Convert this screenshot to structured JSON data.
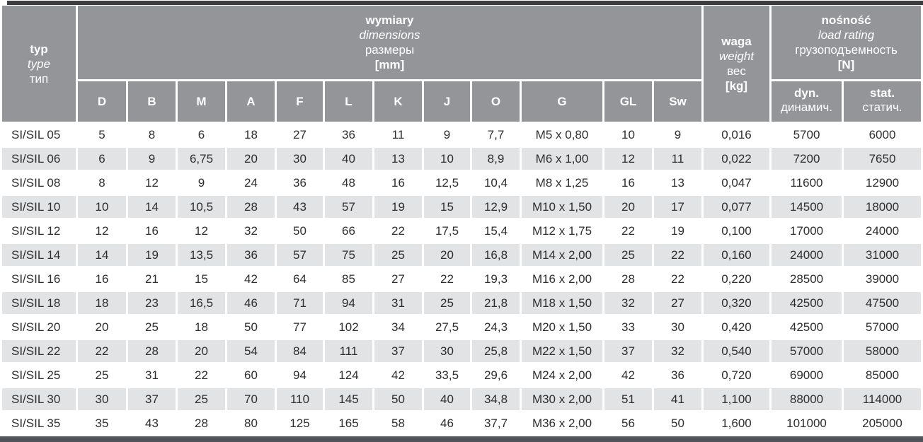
{
  "colors": {
    "header_bg": "#939598",
    "row_alt_bg": "#e2e3e5",
    "header_text": "#ffffff",
    "body_text": "#2d2e30",
    "top_bar": "#3e3e41",
    "bottom_bar": "#525358"
  },
  "table": {
    "header": {
      "type": {
        "pl": "typ",
        "en": "type",
        "ru": "тип"
      },
      "dimensions": {
        "pl": "wymiary",
        "en": "dimensions",
        "ru": "размеры",
        "unit": "[mm]"
      },
      "weight": {
        "pl": "waga",
        "en": "weight",
        "ru": "вес",
        "unit": "[kg]"
      },
      "load_rating": {
        "pl": "nośność",
        "en": "load rating",
        "ru": "грузоподъемность",
        "unit": "[N]"
      },
      "dim_columns": [
        "D",
        "B",
        "M",
        "A",
        "F",
        "L",
        "K",
        "J",
        "O",
        "G",
        "GL",
        "Sw"
      ],
      "dyn": {
        "en": "dyn.",
        "ru": "динамич."
      },
      "stat": {
        "en": "stat.",
        "ru": "статич."
      }
    },
    "rows": [
      {
        "type": "SI/SIL 05",
        "dims": [
          "5",
          "8",
          "6",
          "18",
          "27",
          "36",
          "11",
          "9",
          "7,7",
          "M5 x 0,80",
          "10",
          "9"
        ],
        "weight": "0,016",
        "dyn": "5700",
        "stat": "6000"
      },
      {
        "type": "SI/SIL 06",
        "dims": [
          "6",
          "9",
          "6,75",
          "20",
          "30",
          "40",
          "13",
          "10",
          "8,9",
          "M6 x 1,00",
          "12",
          "11"
        ],
        "weight": "0,022",
        "dyn": "7200",
        "stat": "7650"
      },
      {
        "type": "SI/SIL 08",
        "dims": [
          "8",
          "12",
          "9",
          "24",
          "36",
          "48",
          "16",
          "12,5",
          "10,4",
          "M8 x 1,25",
          "16",
          "13"
        ],
        "weight": "0,047",
        "dyn": "11600",
        "stat": "12900"
      },
      {
        "type": "SI/SIL 10",
        "dims": [
          "10",
          "14",
          "10,5",
          "28",
          "43",
          "57",
          "19",
          "15",
          "12,9",
          "M10 x 1,50",
          "20",
          "17"
        ],
        "weight": "0,077",
        "dyn": "14500",
        "stat": "18000"
      },
      {
        "type": "SI/SIL 12",
        "dims": [
          "12",
          "16",
          "12",
          "32",
          "50",
          "66",
          "22",
          "17,5",
          "15,4",
          "M12 x 1,75",
          "22",
          "19"
        ],
        "weight": "0,100",
        "dyn": "17000",
        "stat": "24000"
      },
      {
        "type": "SI/SIL 14",
        "dims": [
          "14",
          "19",
          "13,5",
          "36",
          "57",
          "75",
          "25",
          "20",
          "16,8",
          "M14 x 2,00",
          "25",
          "22"
        ],
        "weight": "0,160",
        "dyn": "24000",
        "stat": "31000"
      },
      {
        "type": "SI/SIL 16",
        "dims": [
          "16",
          "21",
          "15",
          "42",
          "64",
          "85",
          "27",
          "22",
          "19,3",
          "M16 x 2,00",
          "28",
          "22"
        ],
        "weight": "0,220",
        "dyn": "28500",
        "stat": "39000"
      },
      {
        "type": "SI/SIL 18",
        "dims": [
          "18",
          "23",
          "16,5",
          "46",
          "71",
          "94",
          "31",
          "25",
          "21,8",
          "M18 x 1,50",
          "32",
          "27"
        ],
        "weight": "0,320",
        "dyn": "42500",
        "stat": "47500"
      },
      {
        "type": "SI/SIL 20",
        "dims": [
          "20",
          "25",
          "18",
          "50",
          "77",
          "102",
          "34",
          "27,5",
          "24,3",
          "M20 x 1,50",
          "33",
          "30"
        ],
        "weight": "0,420",
        "dyn": "42500",
        "stat": "57000"
      },
      {
        "type": "SI/SIL 22",
        "dims": [
          "22",
          "28",
          "20",
          "54",
          "84",
          "111",
          "37",
          "30",
          "25,8",
          "M22 x 1,50",
          "37",
          "32"
        ],
        "weight": "0,540",
        "dyn": "57000",
        "stat": "58000"
      },
      {
        "type": "SI/SIL 25",
        "dims": [
          "25",
          "31",
          "22",
          "60",
          "94",
          "124",
          "42",
          "33,5",
          "29,6",
          "M24 x 2,00",
          "42",
          "36"
        ],
        "weight": "0,720",
        "dyn": "69000",
        "stat": "85000"
      },
      {
        "type": "SI/SIL 30",
        "dims": [
          "30",
          "37",
          "25",
          "70",
          "110",
          "145",
          "50",
          "40",
          "34,8",
          "M30 x 2,00",
          "51",
          "41"
        ],
        "weight": "1,100",
        "dyn": "88000",
        "stat": "114000"
      },
      {
        "type": "SI/SIL 35",
        "dims": [
          "35",
          "43",
          "28",
          "80",
          "125",
          "165",
          "58",
          "46",
          "37,7",
          "M36 x 2,00",
          "56",
          "50"
        ],
        "weight": "1,600",
        "dyn": "101000",
        "stat": "205000"
      }
    ]
  }
}
